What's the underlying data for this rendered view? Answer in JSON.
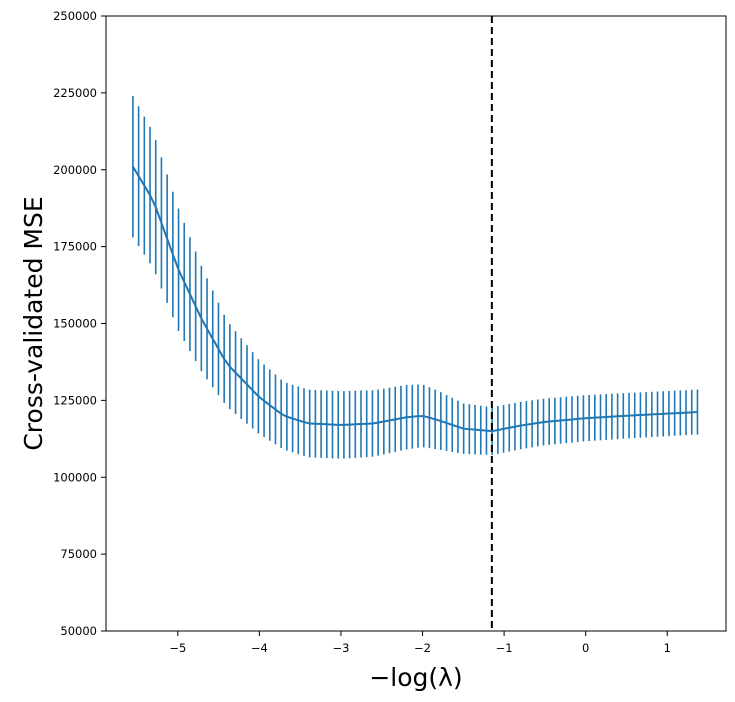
{
  "chart_data": {
    "type": "line",
    "title": "",
    "xlabel": "−log(λ)",
    "ylabel": "Cross-validated MSE",
    "xlim": [
      -5.88,
      1.72
    ],
    "ylim": [
      50000,
      250000
    ],
    "xticks": [
      -5,
      -4,
      -3,
      -2,
      -1,
      0,
      1
    ],
    "xtick_labels": [
      "−5",
      "−4",
      "−3",
      "−2",
      "−1",
      "0",
      "1"
    ],
    "yticks": [
      50000,
      75000,
      100000,
      125000,
      150000,
      175000,
      200000,
      225000,
      250000
    ],
    "ytick_labels": [
      "50000",
      "75000",
      "100000",
      "125000",
      "150000",
      "175000",
      "200000",
      "225000",
      "250000"
    ],
    "series_color": "#1f77b4",
    "x_start": -5.55,
    "x_end": 1.37,
    "n_points": 100,
    "mean_curve_knots": {
      "x": [
        -5.55,
        -5.3,
        -5.0,
        -4.7,
        -4.4,
        -4.0,
        -3.7,
        -3.4,
        -3.0,
        -2.6,
        -2.2,
        -2.0,
        -1.8,
        -1.5,
        -1.15,
        -0.8,
        -0.5,
        0.0,
        0.5,
        1.37
      ],
      "mean": [
        201000,
        190000,
        168000,
        151000,
        137000,
        126000,
        120000,
        117500,
        117000,
        117500,
        119500,
        120000,
        118500,
        115800,
        115000,
        116800,
        118000,
        119200,
        120000,
        121200
      ],
      "err": [
        23000,
        22000,
        20000,
        17000,
        14000,
        12000,
        11000,
        11000,
        11000,
        10800,
        10500,
        10200,
        9500,
        8200,
        7800,
        7700,
        7600,
        7500,
        7400,
        7300
      ]
    },
    "reference_line": {
      "x": -1.15,
      "style": "dashed",
      "color": "#000000",
      "label": ""
    },
    "grid": false
  }
}
